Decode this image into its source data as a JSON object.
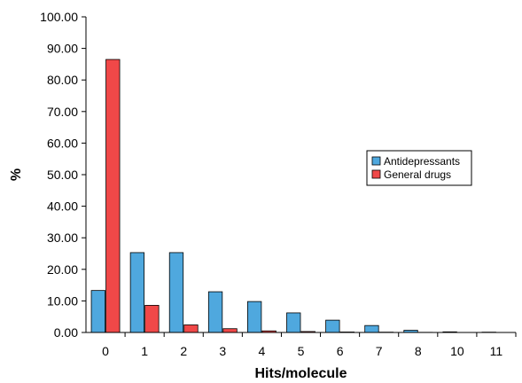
{
  "chart_data": {
    "type": "bar",
    "title": "",
    "xlabel": "Hits/molecule",
    "ylabel": "%",
    "categories": [
      "0",
      "1",
      "2",
      "3",
      "4",
      "5",
      "6",
      "7",
      "8",
      "10",
      "11"
    ],
    "series": [
      {
        "name": "Antidepressants",
        "color": "#4FA8DE",
        "values": [
          13.3,
          25.3,
          25.3,
          12.9,
          9.8,
          6.2,
          3.9,
          2.2,
          0.7,
          0.2,
          0.1
        ]
      },
      {
        "name": "General drugs",
        "color": "#F04848",
        "values": [
          86.5,
          8.6,
          2.4,
          1.2,
          0.5,
          0.3,
          0.15,
          0.1,
          0.05,
          0.02,
          0.01
        ]
      }
    ],
    "ylim": [
      0,
      100
    ],
    "yticks": [
      "0.00",
      "10.00",
      "20.00",
      "30.00",
      "40.00",
      "50.00",
      "60.00",
      "70.00",
      "80.00",
      "90.00",
      "100.00"
    ],
    "grid": false,
    "legend_position": "right"
  }
}
